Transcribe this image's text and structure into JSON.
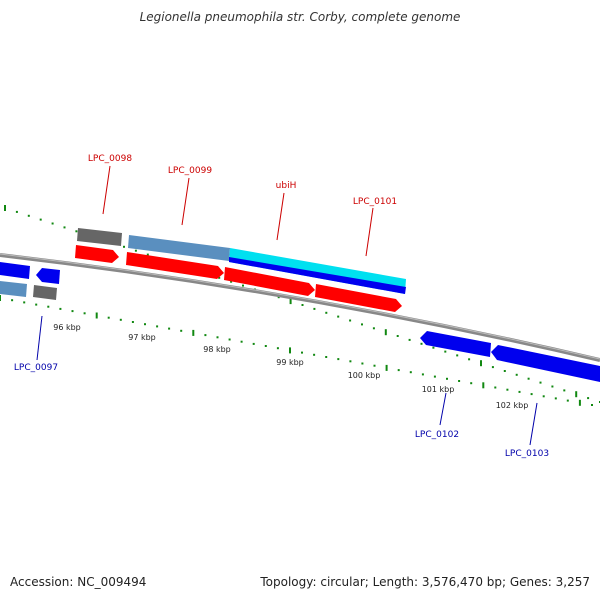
{
  "title": "Legionella pneumophila str. Corby, complete genome",
  "accession": "Accession: NC_009494",
  "summary": "Topology: circular; Length: 3,576,470 bp; Genes: 3,257",
  "labels": {
    "lpc0097": "LPC_0097",
    "lpc0098": "LPC_0098",
    "lpc0099": "LPC_0099",
    "ubih": "ubiH",
    "lpc0101": "LPC_0101",
    "lpc0102": "LPC_0102",
    "lpc0103": "LPC_0103"
  },
  "ticks": [
    "96 kbp",
    "97 kbp",
    "98 kbp",
    "99 kbp",
    "100 kbp",
    "101 kbp",
    "102 kbp"
  ],
  "colors": {
    "forward_cds": "#ff0000",
    "reverse_cds": "#0000ff",
    "forward_gene": "#5a8fbf",
    "pseudogene": "#666666",
    "backbone": "#888888",
    "tick": "#118811",
    "label_forward": "#cc0000",
    "label_reverse": "#0000aa"
  }
}
